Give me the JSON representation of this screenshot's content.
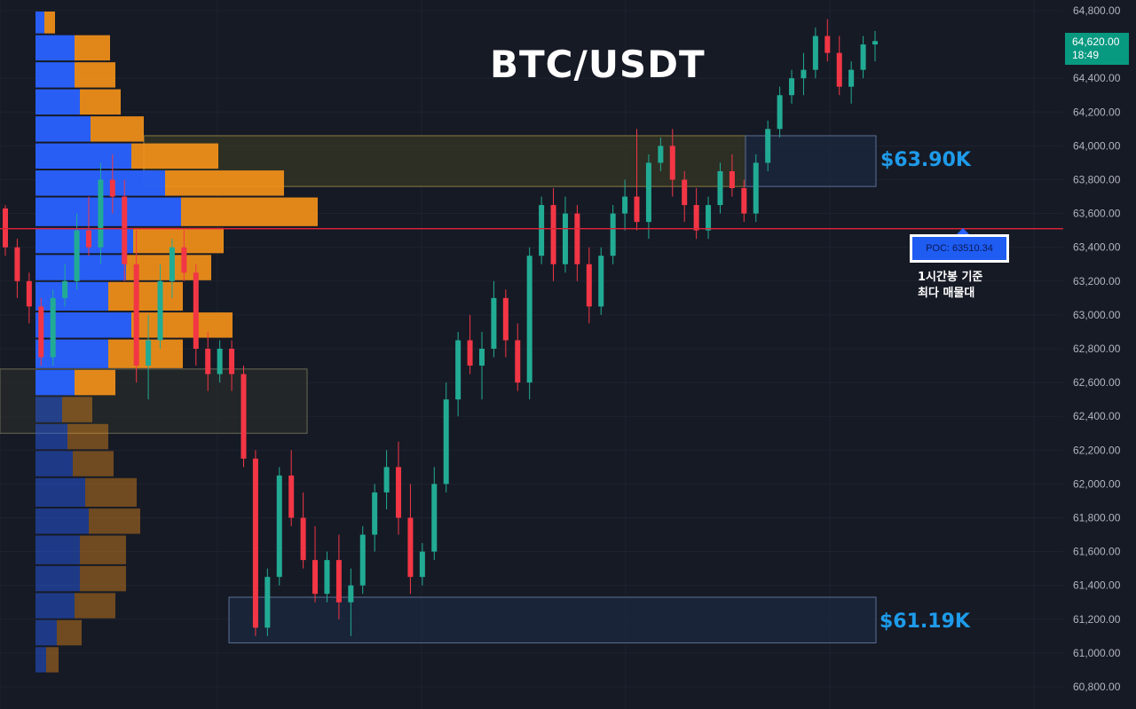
{
  "title": "BTC/USDT",
  "price_tag": {
    "price": "64,620.00",
    "time": "18:49",
    "color": "#089981"
  },
  "zones": {
    "upper_label": "$63.90K",
    "lower_label": "$61.19K"
  },
  "poc": {
    "label": "POC: 63510.34",
    "note_line1": "1시간봉 기준",
    "note_line2": "최다 매물대"
  },
  "colors": {
    "background": "#161a25",
    "up": "#22ab94",
    "down": "#f23645",
    "poc_line": "#e0243a",
    "volume_buy": "#2962ff",
    "volume_sell": "#f7931a",
    "zone_label": "#1e9bea"
  },
  "chart_data": {
    "type": "candlestick",
    "y_axis": {
      "min": 60700,
      "max": 64900,
      "ticks": [
        60800,
        61000,
        61200,
        61400,
        61600,
        61800,
        62000,
        62200,
        62400,
        62600,
        62800,
        63000,
        63200,
        63400,
        63600,
        63800,
        64000,
        64200,
        64400,
        64800
      ]
    },
    "y_tick_labels": [
      "60,800.00",
      "61,000.00",
      "61,200.00",
      "61,400.00",
      "61,600.00",
      "61,800.00",
      "62,000.00",
      "62,200.00",
      "62,400.00",
      "62,600.00",
      "62,800.00",
      "63,000.00",
      "63,200.00",
      "63,400.00",
      "63,600.00",
      "63,800.00",
      "64,000.00",
      "64,200.00",
      "64,400.00",
      "64,800.00"
    ],
    "last_price": 64620,
    "poc_price": 63510.34,
    "zones": [
      {
        "name": "upper",
        "from": 63760,
        "to": 64060
      },
      {
        "name": "lower",
        "from": 61060,
        "to": 61330
      },
      {
        "name": "vp-left",
        "from": 62300,
        "to": 62680
      }
    ],
    "volume_profile": [
      {
        "low": 64660,
        "high": 64800,
        "buy": 10,
        "sell": 12
      },
      {
        "low": 64500,
        "high": 64660,
        "buy": 44,
        "sell": 40
      },
      {
        "low": 64340,
        "high": 64500,
        "buy": 44,
        "sell": 46
      },
      {
        "low": 64180,
        "high": 64340,
        "buy": 50,
        "sell": 46
      },
      {
        "low": 64020,
        "high": 64180,
        "buy": 62,
        "sell": 60
      },
      {
        "low": 63860,
        "high": 64020,
        "buy": 108,
        "sell": 98
      },
      {
        "low": 63700,
        "high": 63860,
        "buy": 146,
        "sell": 134
      },
      {
        "low": 63520,
        "high": 63700,
        "buy": 164,
        "sell": 154
      },
      {
        "low": 63360,
        "high": 63520,
        "buy": 110,
        "sell": 102
      },
      {
        "low": 63200,
        "high": 63360,
        "buy": 102,
        "sell": 96
      },
      {
        "low": 63020,
        "high": 63200,
        "buy": 82,
        "sell": 84
      },
      {
        "low": 62860,
        "high": 63020,
        "buy": 108,
        "sell": 114
      },
      {
        "low": 62680,
        "high": 62860,
        "buy": 82,
        "sell": 84
      },
      {
        "low": 62520,
        "high": 62680,
        "buy": 44,
        "sell": 46
      },
      {
        "low": 62360,
        "high": 62520,
        "buy": 30,
        "sell": 34
      },
      {
        "low": 62200,
        "high": 62360,
        "buy": 36,
        "sell": 46
      },
      {
        "low": 62040,
        "high": 62200,
        "buy": 42,
        "sell": 46
      },
      {
        "low": 61860,
        "high": 62040,
        "buy": 56,
        "sell": 58
      },
      {
        "low": 61700,
        "high": 61860,
        "buy": 60,
        "sell": 58
      },
      {
        "low": 61520,
        "high": 61700,
        "buy": 50,
        "sell": 52
      },
      {
        "low": 61360,
        "high": 61520,
        "buy": 50,
        "sell": 52
      },
      {
        "low": 61200,
        "high": 61360,
        "buy": 44,
        "sell": 46
      },
      {
        "low": 61040,
        "high": 61200,
        "buy": 24,
        "sell": 28
      },
      {
        "low": 60880,
        "high": 61040,
        "buy": 12,
        "sell": 14
      }
    ],
    "candles": [
      [
        63630,
        63650,
        63350,
        63400
      ],
      [
        63400,
        63450,
        63100,
        63200
      ],
      [
        63200,
        63250,
        62950,
        63050
      ],
      [
        63050,
        63100,
        62700,
        62750
      ],
      [
        62750,
        63150,
        62700,
        63100
      ],
      [
        63100,
        63300,
        63050,
        63200
      ],
      [
        63200,
        63600,
        63150,
        63500
      ],
      [
        63500,
        63700,
        63350,
        63400
      ],
      [
        63400,
        63900,
        63300,
        63800
      ],
      [
        63800,
        63950,
        63600,
        63700
      ],
      [
        63700,
        63800,
        63200,
        63300
      ],
      [
        63300,
        63500,
        62600,
        62700
      ],
      [
        62700,
        63000,
        62500,
        62850
      ],
      [
        62850,
        63300,
        62800,
        63200
      ],
      [
        63200,
        63450,
        63100,
        63400
      ],
      [
        63400,
        63500,
        63200,
        63250
      ],
      [
        63250,
        63300,
        62700,
        62800
      ],
      [
        62800,
        62900,
        62550,
        62650
      ],
      [
        62650,
        62850,
        62600,
        62800
      ],
      [
        62800,
        62850,
        62550,
        62650
      ],
      [
        62650,
        62700,
        62100,
        62150
      ],
      [
        62150,
        62200,
        61100,
        61150
      ],
      [
        61150,
        61500,
        61100,
        61450
      ],
      [
        61450,
        62100,
        61400,
        62050
      ],
      [
        62050,
        62200,
        61750,
        61800
      ],
      [
        61800,
        61950,
        61500,
        61550
      ],
      [
        61550,
        61750,
        61300,
        61350
      ],
      [
        61350,
        61600,
        61300,
        61550
      ],
      [
        61550,
        61700,
        61200,
        61300
      ],
      [
        61300,
        61500,
        61100,
        61400
      ],
      [
        61400,
        61750,
        61350,
        61700
      ],
      [
        61700,
        62000,
        61600,
        61950
      ],
      [
        61950,
        62200,
        61850,
        62100
      ],
      [
        62100,
        62250,
        61700,
        61800
      ],
      [
        61800,
        62000,
        61350,
        61450
      ],
      [
        61450,
        61650,
        61400,
        61600
      ],
      [
        61600,
        62100,
        61550,
        62000
      ],
      [
        62000,
        62600,
        61950,
        62500
      ],
      [
        62500,
        62900,
        62400,
        62850
      ],
      [
        62850,
        63000,
        62650,
        62700
      ],
      [
        62700,
        62900,
        62500,
        62800
      ],
      [
        62800,
        63200,
        62750,
        63100
      ],
      [
        63100,
        63150,
        62750,
        62850
      ],
      [
        62850,
        62950,
        62550,
        62600
      ],
      [
        62600,
        63400,
        62500,
        63350
      ],
      [
        63350,
        63700,
        63300,
        63650
      ],
      [
        63650,
        63750,
        63200,
        63300
      ],
      [
        63300,
        63700,
        63250,
        63600
      ],
      [
        63600,
        63650,
        63200,
        63300
      ],
      [
        63300,
        63400,
        62950,
        63050
      ],
      [
        63050,
        63400,
        63000,
        63350
      ],
      [
        63350,
        63650,
        63300,
        63600
      ],
      [
        63600,
        63800,
        63500,
        63700
      ],
      [
        63700,
        64100,
        63500,
        63550
      ],
      [
        63550,
        63950,
        63450,
        63900
      ],
      [
        63900,
        64050,
        63850,
        64000
      ],
      [
        64000,
        64100,
        63700,
        63800
      ],
      [
        63800,
        63850,
        63550,
        63650
      ],
      [
        63650,
        63750,
        63450,
        63500
      ],
      [
        63500,
        63700,
        63450,
        63650
      ],
      [
        63650,
        63900,
        63600,
        63850
      ],
      [
        63850,
        63950,
        63700,
        63750
      ],
      [
        63750,
        63800,
        63550,
        63600
      ],
      [
        63600,
        63950,
        63550,
        63900
      ],
      [
        63900,
        64150,
        63850,
        64100
      ],
      [
        64100,
        64350,
        64050,
        64300
      ],
      [
        64300,
        64450,
        64250,
        64400
      ],
      [
        64400,
        64550,
        64300,
        64450
      ],
      [
        64450,
        64700,
        64400,
        64650
      ],
      [
        64650,
        64750,
        64500,
        64550
      ],
      [
        64550,
        64650,
        64300,
        64350
      ],
      [
        64350,
        64500,
        64250,
        64450
      ],
      [
        64450,
        64650,
        64400,
        64600
      ],
      [
        64600,
        64680,
        64500,
        64620
      ]
    ]
  }
}
